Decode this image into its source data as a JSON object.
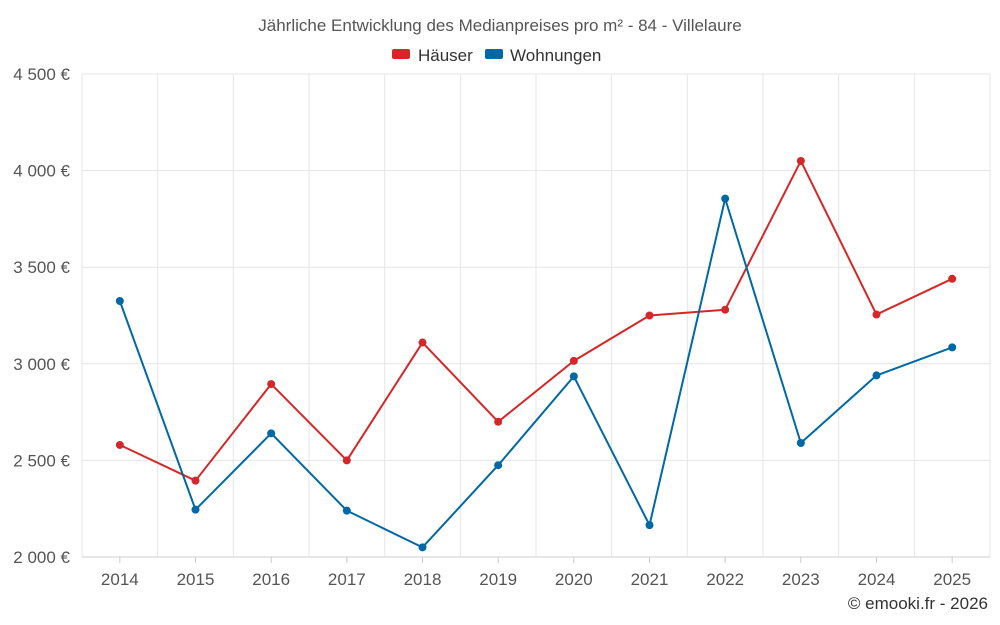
{
  "chart_data": {
    "type": "line",
    "title": "Jährliche Entwicklung des Medianpreises pro m² - 84 - Villelaure",
    "categories": [
      "2014",
      "2015",
      "2016",
      "2017",
      "2018",
      "2019",
      "2020",
      "2021",
      "2022",
      "2023",
      "2024",
      "2025"
    ],
    "series": [
      {
        "name": "Häuser",
        "color": "#d62728",
        "values": [
          2580,
          2395,
          2895,
          2500,
          3110,
          2700,
          3015,
          3250,
          3280,
          4050,
          3255,
          3440
        ]
      },
      {
        "name": "Wohnungen",
        "color": "#0068a5",
        "values": [
          3325,
          2245,
          2640,
          2240,
          2050,
          2475,
          2935,
          2165,
          3855,
          2590,
          2940,
          3085
        ]
      }
    ],
    "ylim": [
      2000,
      4500
    ],
    "yticks": [
      2000,
      2500,
      3000,
      3500,
      4000,
      4500
    ],
    "ytick_labels": [
      "2 000 €",
      "2 500 €",
      "3 000 €",
      "3 500 €",
      "4 000 €",
      "4 500 €"
    ],
    "grid": true,
    "legend_position": "top-center",
    "credit": "© emooki.fr - 2026"
  }
}
